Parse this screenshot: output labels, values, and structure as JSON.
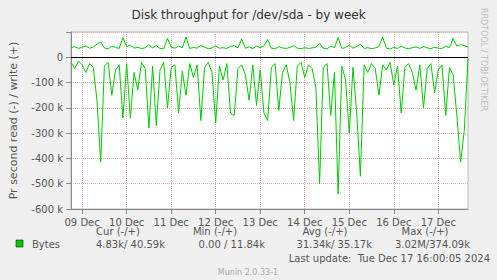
{
  "chart_data": {
    "type": "line",
    "title": "Disk throughput for /dev/sda - by week",
    "y_label": "Pr second read (-) / write (+)",
    "categories": [
      null,
      null,
      null,
      "09 Dec",
      null,
      null,
      null,
      null,
      null,
      null,
      null,
      null,
      null,
      null,
      null,
      "10 Dec",
      null,
      null,
      null,
      null,
      null,
      null,
      null,
      null,
      null,
      null,
      null,
      "11 Dec",
      null,
      null,
      null,
      null,
      null,
      null,
      null,
      null,
      null,
      null,
      null,
      "12 Dec",
      null,
      null,
      null,
      null,
      null,
      null,
      null,
      null,
      null,
      null,
      null,
      "13 Dec",
      null,
      null,
      null,
      null,
      null,
      null,
      null,
      null,
      null,
      null,
      null,
      "14 Dec",
      null,
      null,
      null,
      null,
      null,
      null,
      null,
      null,
      null,
      null,
      null,
      "15 Dec",
      null,
      null,
      null,
      null,
      null,
      null,
      null,
      null,
      null,
      null,
      null,
      "16 Dec",
      null,
      null,
      null,
      null,
      null,
      null,
      null,
      null,
      null,
      null,
      null,
      "17 Dec",
      null,
      null,
      null,
      null,
      null,
      null,
      null,
      null
    ],
    "series": [
      {
        "name": "Bytes",
        "color": "#00cc00",
        "values": [
          -20000,
          -45000,
          -15000,
          -30000,
          -60000,
          -25000,
          -40000,
          -170000,
          -415000,
          -35000,
          -20000,
          -150000,
          -50000,
          -30000,
          -240000,
          -25000,
          -240000,
          -60000,
          -130000,
          -20000,
          -45000,
          -280000,
          -35000,
          -270000,
          -50000,
          -20000,
          -200000,
          -40000,
          -30000,
          -220000,
          -55000,
          -150000,
          -25000,
          -80000,
          -30000,
          -250000,
          -40000,
          -20000,
          -60000,
          -260000,
          -35000,
          -90000,
          -25000,
          -220000,
          -230000,
          -45000,
          -30000,
          -70000,
          -170000,
          -30000,
          -190000,
          -50000,
          -220000,
          -250000,
          -40000,
          -25000,
          -210000,
          -60000,
          -30000,
          -100000,
          -250000,
          -35000,
          -20000,
          -80000,
          -30000,
          -45000,
          -120000,
          -500000,
          -40000,
          -25000,
          -230000,
          -60000,
          -540000,
          -35000,
          -90000,
          -300000,
          -40000,
          -220000,
          -470000,
          -30000,
          -60000,
          -25000,
          -45000,
          -150000,
          -30000,
          -50000,
          -20000,
          -110000,
          -35000,
          -220000,
          -40000,
          -25000,
          -60000,
          -130000,
          -30000,
          -200000,
          -45000,
          -25000,
          -140000,
          -50000,
          -30000,
          -230000,
          -40000,
          -70000,
          -230000,
          -415000,
          -290000,
          -4830
        ]
      },
      {
        "name": "Bytes",
        "color": "#00cc00",
        "values": [
          38000,
          42000,
          35000,
          40000,
          45000,
          36000,
          41000,
          52000,
          60000,
          37000,
          33000,
          44000,
          39000,
          35000,
          78000,
          42000,
          48000,
          36000,
          40000,
          34000,
          38000,
          50000,
          37000,
          46000,
          35000,
          33000,
          75000,
          40000,
          36000,
          44000,
          38000,
          80000,
          35000,
          39000,
          36000,
          47000,
          40000,
          34000,
          37000,
          45000,
          36000,
          38000,
          35000,
          43000,
          46000,
          37000,
          72000,
          36000,
          41000,
          34000,
          44000,
          38000,
          45000,
          70000,
          36000,
          33000,
          42000,
          37000,
          35000,
          39000,
          46000,
          36000,
          34000,
          38000,
          35000,
          37000,
          40000,
          55000,
          36000,
          33000,
          44000,
          38000,
          78000,
          35000,
          39000,
          48000,
          36000,
          43000,
          52000,
          35000,
          38000,
          34000,
          37000,
          42000,
          80000,
          36000,
          33000,
          39000,
          35000,
          44000,
          37000,
          34000,
          38000,
          41000,
          35000,
          43000,
          37000,
          34000,
          40000,
          36000,
          35000,
          45000,
          38000,
          75000,
          44000,
          50000,
          46000,
          40590
        ]
      }
    ],
    "ylim": [
      -600000,
      100000
    ],
    "yticks": [
      {
        "value": -600000,
        "label": "-600 k"
      },
      {
        "value": -500000,
        "label": "-500 k"
      },
      {
        "value": -400000,
        "label": "-400 k"
      },
      {
        "value": -300000,
        "label": "-300 k"
      },
      {
        "value": -200000,
        "label": "-200 k"
      },
      {
        "value": -100000,
        "label": "-100 k"
      },
      0
    ],
    "grid": true,
    "stats": {
      "columns": [
        "Cur (-/+)",
        "Min (-/+)",
        "Avg (-/+)",
        "Max (-/+)"
      ],
      "values": [
        "4.83k/ 40.59k",
        "0.00 / 11.84k",
        "31.34k/ 35.17k",
        "3.02M/374.09k"
      ]
    },
    "last_update": "Last update:  Tue Dec 17 16:00:05 2024",
    "side_text": "RRDTOOL / TOBI OETIKER",
    "footer": "Munin 2.0.33-1"
  }
}
